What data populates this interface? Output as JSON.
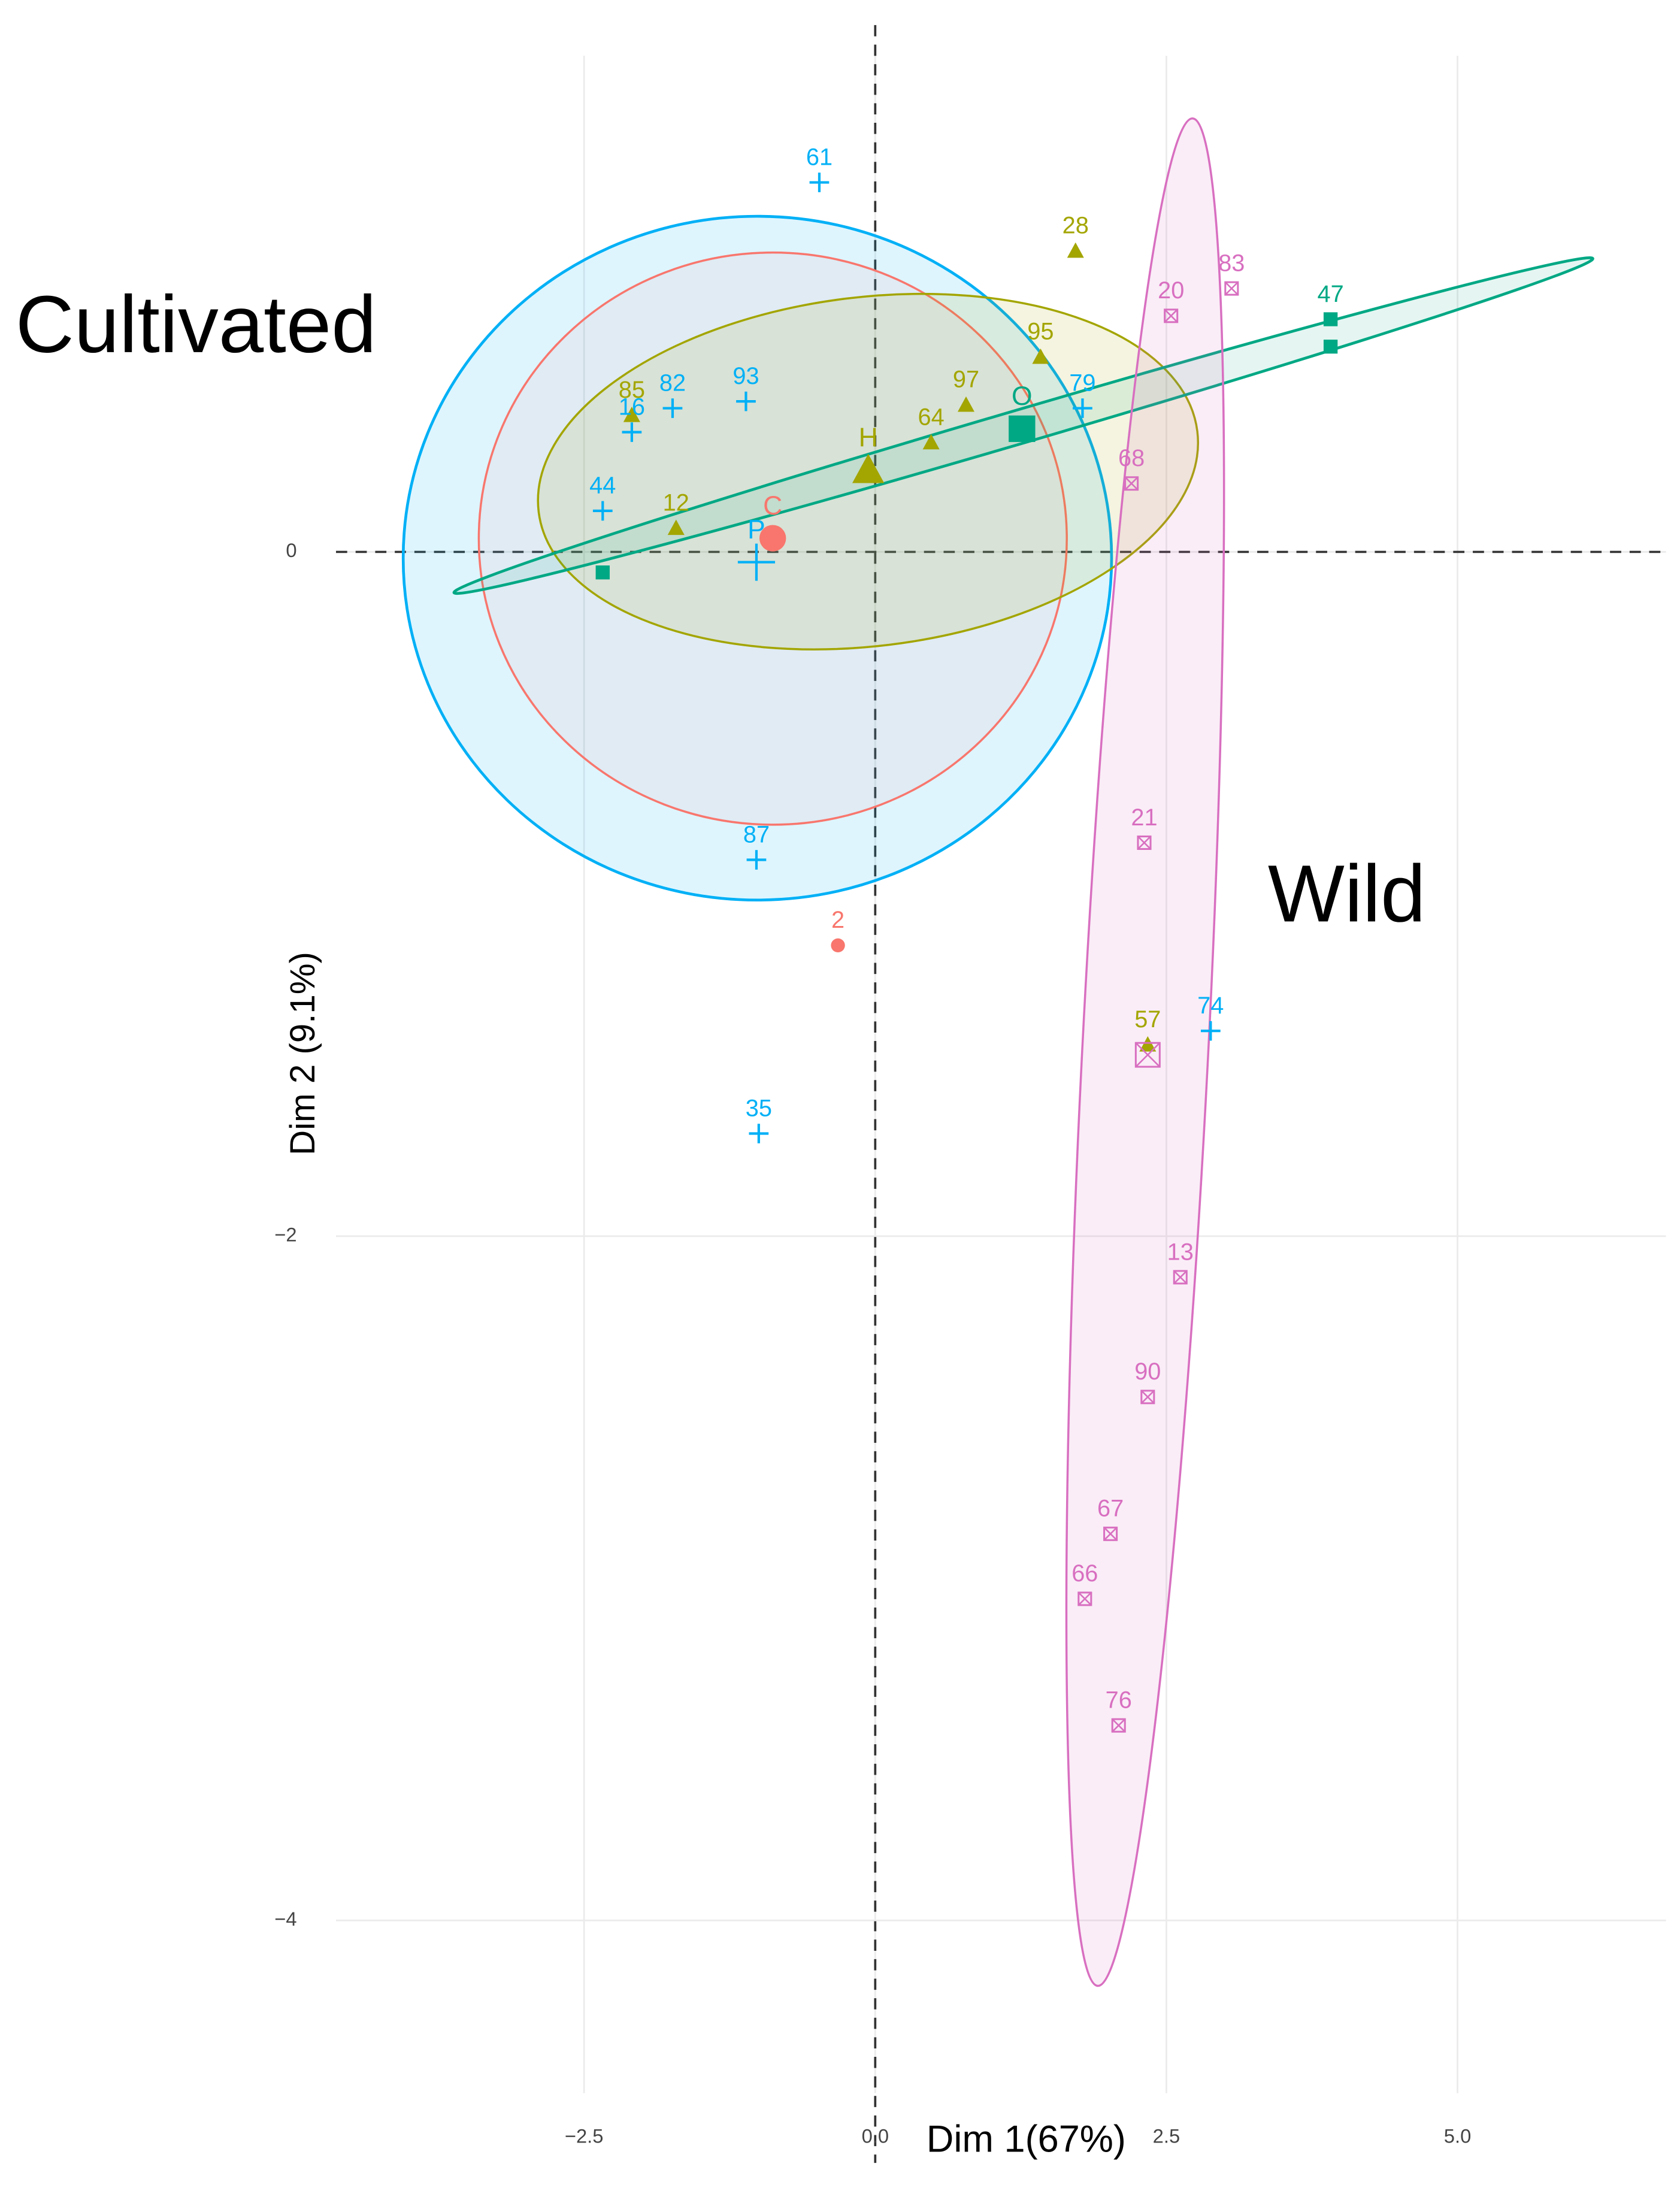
{
  "chart_data": {
    "type": "scatter",
    "annotations": [
      "Cultivated",
      "Wild"
    ],
    "xlabel": "Dim 1(67%)",
    "ylabel": "Dim 2 (9.1%)",
    "xlim": [
      -4.63,
      6.79
    ],
    "ylim": [
      -4.26,
      1.45
    ],
    "xticks": [
      {
        "value": -2.5,
        "label": "−2.5"
      },
      {
        "value": 0,
        "label": "0.0"
      },
      2.5,
      {
        "value": 5,
        "label": "5.0"
      }
    ],
    "yticks": [
      0,
      {
        "value": -2,
        "label": "−2"
      },
      {
        "value": -4,
        "label": "−4"
      }
    ],
    "grid": true,
    "zero_lines": true,
    "series": [
      {
        "color": "#f8766d",
        "marker": "circle",
        "x": [
          -0.32
        ],
        "y": [
          -1.15
        ],
        "labels": [
          "2"
        ],
        "centroid": {
          "x": -0.88,
          "y": 0.04,
          "label": "C"
        }
      },
      {
        "color": "#a3a500",
        "marker": "triangle",
        "x": [
          1.72,
          1.42,
          0.48,
          -1.71,
          -2.09,
          0.78,
          2.34
        ],
        "y": [
          0.88,
          0.57,
          0.32,
          0.07,
          0.4,
          0.43,
          -1.44
        ],
        "labels": [
          "28",
          "95",
          "64",
          "12",
          "85",
          "97",
          "57"
        ],
        "centroid": {
          "x": -0.06,
          "y": 0.24,
          "label": "H"
        }
      },
      {
        "color": "#00a884",
        "marker": "square",
        "x": [
          3.91,
          3.91,
          -2.34
        ],
        "y": [
          0.68,
          0.6,
          -0.06
        ],
        "labels": [
          "47",
          null,
          null
        ],
        "centroid": {
          "x": 1.26,
          "y": 0.36,
          "label": "O"
        }
      },
      {
        "color": "#00b0f6",
        "marker": "plus",
        "x": [
          -0.48,
          -1.74,
          -1.11,
          -1.02,
          -1.0,
          2.88,
          1.78,
          -2.09,
          -2.34
        ],
        "y": [
          1.08,
          0.42,
          0.44,
          -0.9,
          -1.7,
          -1.4,
          0.42,
          0.35,
          0.12
        ],
        "labels": [
          "61",
          "82",
          "93",
          "87",
          "35",
          "74",
          "79",
          "16",
          "44"
        ],
        "centroid": {
          "x": -1.02,
          "y": -0.03,
          "label": "P"
        }
      },
      {
        "color": "#d86fc0",
        "marker": "squarex",
        "x": [
          3.06,
          2.54,
          2.2,
          2.31,
          2.62,
          2.34,
          2.02,
          1.8,
          2.09
        ],
        "y": [
          0.77,
          0.69,
          0.2,
          -0.85,
          -2.12,
          -2.47,
          -2.87,
          -3.06,
          -3.43
        ],
        "labels": [
          "83",
          "20",
          "68",
          "21",
          "13",
          "90",
          "67",
          "66",
          "76"
        ],
        "centroid": {
          "x": 2.34,
          "y": -1.47
        }
      }
    ]
  }
}
